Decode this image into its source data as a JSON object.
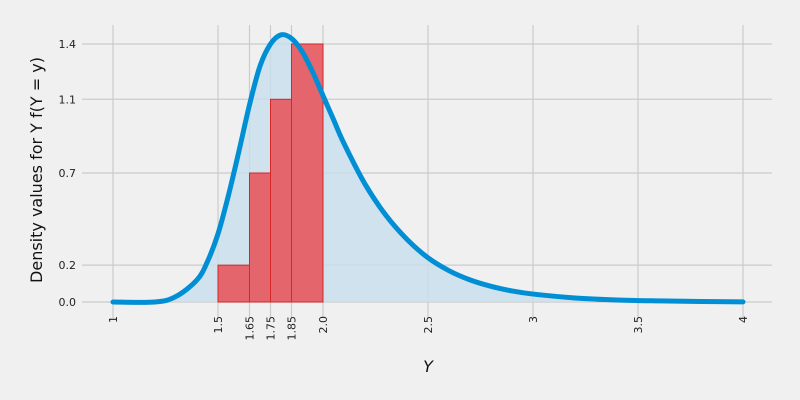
{
  "chart_data": {
    "type": "area",
    "title": "",
    "xlabel": "Y",
    "ylabel": "Density values for Y f(Y = y)",
    "xlim": [
      1,
      4
    ],
    "ylim": [
      0,
      1.4
    ],
    "x_ticks": [
      1,
      1.5,
      1.65,
      1.75,
      1.85,
      2.0,
      2.5,
      3,
      3.5,
      4
    ],
    "x_tick_labels": [
      "1",
      "1.5",
      "1.65",
      "1.75",
      "1.85",
      "2.0",
      "2.5",
      "3",
      "3.5",
      "4"
    ],
    "y_ticks": [
      0.0,
      0.2,
      0.7,
      1.1,
      1.4
    ],
    "y_tick_labels": [
      "0.0",
      "0.2",
      "0.7",
      "1.1",
      "1.4"
    ],
    "grid": true,
    "density_curve": {
      "x": [
        1.0,
        1.2,
        1.3,
        1.4,
        1.45,
        1.5,
        1.55,
        1.6,
        1.65,
        1.7,
        1.75,
        1.8,
        1.85,
        1.9,
        1.95,
        2.0,
        2.05,
        2.1,
        2.2,
        2.3,
        2.4,
        2.5,
        2.6,
        2.7,
        2.8,
        2.9,
        3.0,
        3.2,
        3.4,
        3.6,
        3.8,
        4.0
      ],
      "y": [
        0.0,
        0.0,
        0.03,
        0.12,
        0.22,
        0.37,
        0.58,
        0.82,
        1.07,
        1.28,
        1.4,
        1.45,
        1.43,
        1.36,
        1.25,
        1.12,
        0.99,
        0.86,
        0.64,
        0.47,
        0.34,
        0.24,
        0.17,
        0.12,
        0.085,
        0.06,
        0.043,
        0.022,
        0.011,
        0.006,
        0.003,
        0.001
      ],
      "line_color": "#008fd5",
      "fill_color": "#c7dfee"
    },
    "bars": [
      {
        "x_start": 1.5,
        "x_end": 1.65,
        "height": 0.2
      },
      {
        "x_start": 1.65,
        "x_end": 1.75,
        "height": 0.7
      },
      {
        "x_start": 1.75,
        "x_end": 1.85,
        "height": 1.1
      },
      {
        "x_start": 1.85,
        "x_end": 2.0,
        "height": 1.4
      }
    ],
    "bar_fill": "#e5585d",
    "bar_edge": "#d62728",
    "background": "#f0f0f0"
  }
}
